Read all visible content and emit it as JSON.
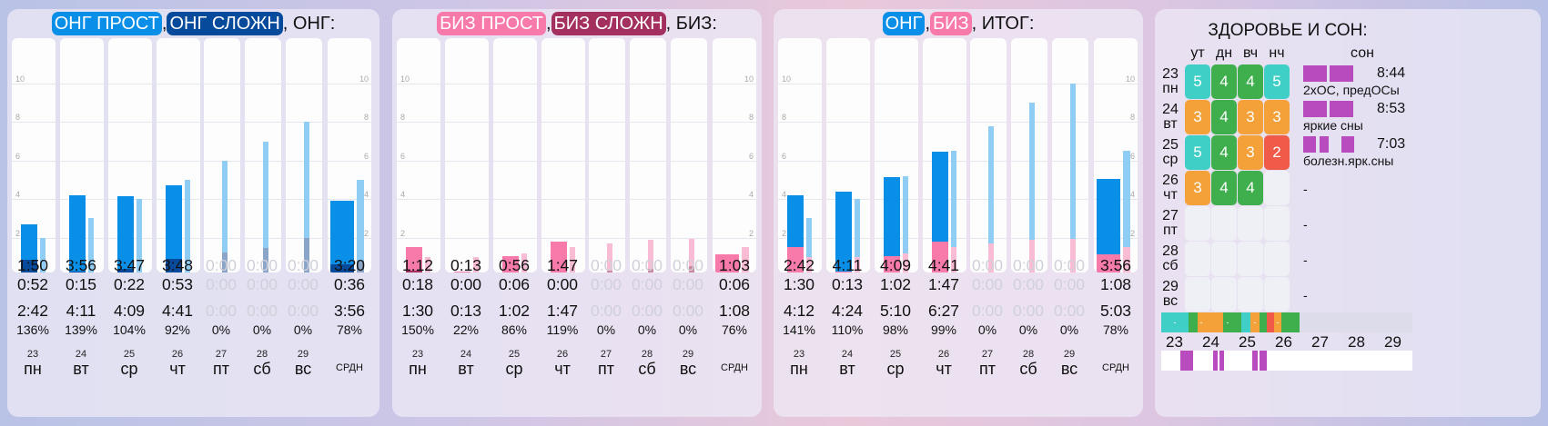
{
  "colors": {
    "ong_simple": "#0a8fe8",
    "ong_complex": "#064a9c",
    "ong_light": "#8fcdf4",
    "ong_complex_light": "#8aa5c8",
    "biz_simple": "#f77aaa",
    "biz_complex": "#a3305e",
    "biz_light": "#f9bcd4",
    "biz_complex_light": "#c98aa2",
    "health_5": "#3fcfc7",
    "health_4": "#3fae4d",
    "health_3": "#f4a13a",
    "health_2": "#f05a48",
    "sleep": "#b84cbf"
  },
  "axis_ticks": [
    "10",
    "8",
    "6",
    "4",
    "2"
  ],
  "panels": [
    {
      "id": "ong",
      "title": {
        "tag1": "ОНГ ПРОСТ",
        "sep1": ",",
        "tag2": "ОНГ СЛОЖН",
        "rest": ", ОНГ:"
      },
      "days": [
        {
          "num": "23",
          "name": "пн",
          "v1": "1:50",
          "v2": "0:52",
          "v3": "2:42",
          "pct": "136%",
          "active": true
        },
        {
          "num": "24",
          "name": "вт",
          "v1": "3:56",
          "v2": "0:15",
          "v3": "4:11",
          "pct": "139%",
          "active": true
        },
        {
          "num": "25",
          "name": "ср",
          "v1": "3:47",
          "v2": "0:22",
          "v3": "4:09",
          "pct": "104%",
          "active": true
        },
        {
          "num": "26",
          "name": "чт",
          "v1": "3:48",
          "v2": "0:53",
          "v3": "4:41",
          "pct": "92%",
          "active": true
        },
        {
          "num": "27",
          "name": "пт",
          "v1": "0:00",
          "v2": "0:00",
          "v3": "0:00",
          "pct": "0%",
          "active": false
        },
        {
          "num": "28",
          "name": "сб",
          "v1": "0:00",
          "v2": "0:00",
          "v3": "0:00",
          "pct": "0%",
          "active": false
        },
        {
          "num": "29",
          "name": "вс",
          "v1": "0:00",
          "v2": "0:00",
          "v3": "0:00",
          "pct": "0%",
          "active": false
        }
      ],
      "avg": {
        "label": "СРДН",
        "v1": "3:20",
        "v2": "0:36",
        "v3": "3:56",
        "pct": "78%"
      }
    },
    {
      "id": "biz",
      "title": {
        "tag1": "БИЗ ПРОСТ",
        "sep1": ",",
        "tag2": "БИЗ СЛОЖН",
        "rest": ", БИЗ:"
      },
      "days": [
        {
          "num": "23",
          "name": "пн",
          "v1": "1:12",
          "v2": "0:18",
          "v3": "1:30",
          "pct": "150%",
          "active": true
        },
        {
          "num": "24",
          "name": "вт",
          "v1": "0:13",
          "v2": "0:00",
          "v3": "0:13",
          "pct": "22%",
          "active": true
        },
        {
          "num": "25",
          "name": "ср",
          "v1": "0:56",
          "v2": "0:06",
          "v3": "1:02",
          "pct": "86%",
          "active": true
        },
        {
          "num": "26",
          "name": "чт",
          "v1": "1:47",
          "v2": "0:00",
          "v3": "1:47",
          "pct": "119%",
          "active": true
        },
        {
          "num": "27",
          "name": "пт",
          "v1": "0:00",
          "v2": "0:00",
          "v3": "0:00",
          "pct": "0%",
          "active": false
        },
        {
          "num": "28",
          "name": "сб",
          "v1": "0:00",
          "v2": "0:00",
          "v3": "0:00",
          "pct": "0%",
          "active": false
        },
        {
          "num": "29",
          "name": "вс",
          "v1": "0:00",
          "v2": "0:00",
          "v3": "0:00",
          "pct": "0%",
          "active": false
        }
      ],
      "avg": {
        "label": "СРДН",
        "v1": "1:03",
        "v2": "0:06",
        "v3": "1:08",
        "pct": "76%"
      }
    },
    {
      "id": "total",
      "title": {
        "tag1": "ОНГ",
        "sep1": ",",
        "tag2": "БИЗ",
        "rest": ", ИТОГ:"
      },
      "days": [
        {
          "num": "23",
          "name": "пн",
          "v1": "2:42",
          "v2": "1:30",
          "v3": "4:12",
          "pct": "141%",
          "active": true
        },
        {
          "num": "24",
          "name": "вт",
          "v1": "4:11",
          "v2": "0:13",
          "v3": "4:24",
          "pct": "110%",
          "active": true
        },
        {
          "num": "25",
          "name": "ср",
          "v1": "4:09",
          "v2": "1:02",
          "v3": "5:10",
          "pct": "98%",
          "active": true
        },
        {
          "num": "26",
          "name": "чт",
          "v1": "4:41",
          "v2": "1:47",
          "v3": "6:27",
          "pct": "99%",
          "active": true
        },
        {
          "num": "27",
          "name": "пт",
          "v1": "0:00",
          "v2": "0:00",
          "v3": "0:00",
          "pct": "0%",
          "active": false
        },
        {
          "num": "28",
          "name": "сб",
          "v1": "0:00",
          "v2": "0:00",
          "v3": "0:00",
          "pct": "0%",
          "active": false
        },
        {
          "num": "29",
          "name": "вс",
          "v1": "0:00",
          "v2": "0:00",
          "v3": "0:00",
          "pct": "0%",
          "active": false
        }
      ],
      "avg": {
        "label": "СРДН",
        "v1": "3:56",
        "v2": "1:08",
        "v3": "5:03",
        "pct": "78%"
      }
    }
  ],
  "chart_data": [
    {
      "type": "bar",
      "categories": [
        "пн",
        "вт",
        "ср",
        "чт",
        "пт",
        "сб",
        "вс",
        "СРДН"
      ],
      "ylim": [
        0,
        10
      ],
      "series": [
        {
          "values": [
            2.7,
            4.2,
            4.15,
            4.7,
            0,
            0,
            0,
            3.9
          ]
        },
        {
          "values": [
            0.87,
            0.25,
            0.37,
            0.88,
            0,
            0,
            0,
            0.6
          ]
        },
        {
          "values": [
            2.0,
            3.0,
            4.0,
            5.0,
            6.0,
            7.0,
            8.0,
            5.0
          ]
        },
        {
          "values": [
            0,
            0,
            0,
            0,
            1.25,
            1.45,
            2.0,
            0.8
          ]
        }
      ]
    },
    {
      "type": "bar",
      "categories": [
        "пн",
        "вт",
        "ср",
        "чт",
        "пт",
        "сб",
        "вс",
        "СРДН"
      ],
      "ylim": [
        0,
        10
      ],
      "series": [
        {
          "values": [
            1.5,
            0.22,
            1.03,
            1.78,
            0,
            0,
            0,
            1.13
          ]
        },
        {
          "values": [
            0.3,
            0,
            0.1,
            0,
            0,
            0,
            0,
            0.1
          ]
        },
        {
          "values": [
            1.0,
            1.0,
            1.2,
            1.5,
            1.7,
            1.9,
            1.95,
            1.5
          ]
        },
        {
          "values": [
            0,
            0,
            0,
            0,
            0.3,
            0.4,
            0.5,
            0.2
          ]
        }
      ]
    },
    {
      "type": "bar",
      "categories": [
        "пн",
        "вт",
        "ср",
        "чт",
        "пт",
        "сб",
        "вс",
        "СРДН"
      ],
      "ylim": [
        0,
        10
      ],
      "series": [
        {
          "values": [
            4.2,
            4.4,
            5.15,
            6.45,
            0,
            0,
            0,
            5.05
          ]
        },
        {
          "values": [
            1.5,
            0.22,
            1.03,
            1.78,
            0,
            0,
            0,
            1.13
          ]
        },
        {
          "values": [
            3.0,
            4.0,
            5.2,
            6.5,
            7.8,
            9.0,
            10.0,
            6.5
          ]
        },
        {
          "values": [
            1.0,
            1.0,
            1.2,
            1.5,
            1.7,
            1.9,
            1.95,
            1.5
          ]
        }
      ]
    }
  ],
  "health": {
    "title": "ЗДОРОВЬЕ И СОН:",
    "headers": [
      "ут",
      "дн",
      "вч",
      "нч"
    ],
    "sleep_header": "сон",
    "rows": [
      {
        "num": "23",
        "name": "пн",
        "vals": [
          "5",
          "4",
          "4",
          "5"
        ],
        "sleep_blocks": 2,
        "time": "8:44",
        "note": "2хОС, предОСы"
      },
      {
        "num": "24",
        "name": "вт",
        "vals": [
          "3",
          "4",
          "3",
          "3"
        ],
        "sleep_blocks": 2,
        "time": "8:53",
        "note": "яркие сны"
      },
      {
        "num": "25",
        "name": "ср",
        "vals": [
          "5",
          "4",
          "3",
          "2"
        ],
        "sleep_blocks": 3,
        "time": "7:03",
        "note": "болезн.ярк.сны"
      },
      {
        "num": "26",
        "name": "чт",
        "vals": [
          "3",
          "4",
          "4",
          ""
        ],
        "sleep_blocks": 0,
        "time": "",
        "note": "-"
      },
      {
        "num": "27",
        "name": "пт",
        "vals": [
          "",
          "",
          "",
          ""
        ],
        "sleep_blocks": 0,
        "time": "",
        "note": "-"
      },
      {
        "num": "28",
        "name": "сб",
        "vals": [
          "",
          "",
          "",
          ""
        ],
        "sleep_blocks": 0,
        "time": "",
        "note": "-"
      },
      {
        "num": "29",
        "name": "вс",
        "vals": [
          "",
          "",
          "",
          ""
        ],
        "sleep_blocks": 0,
        "time": "",
        "note": "-"
      }
    ],
    "strip_labels": [
      "-",
      "-",
      "-",
      "-",
      "-",
      "-",
      "-",
      "-",
      "-",
      "-"
    ],
    "week_nums": [
      "23",
      "24",
      "25",
      "26",
      "27",
      "28",
      "29"
    ]
  }
}
